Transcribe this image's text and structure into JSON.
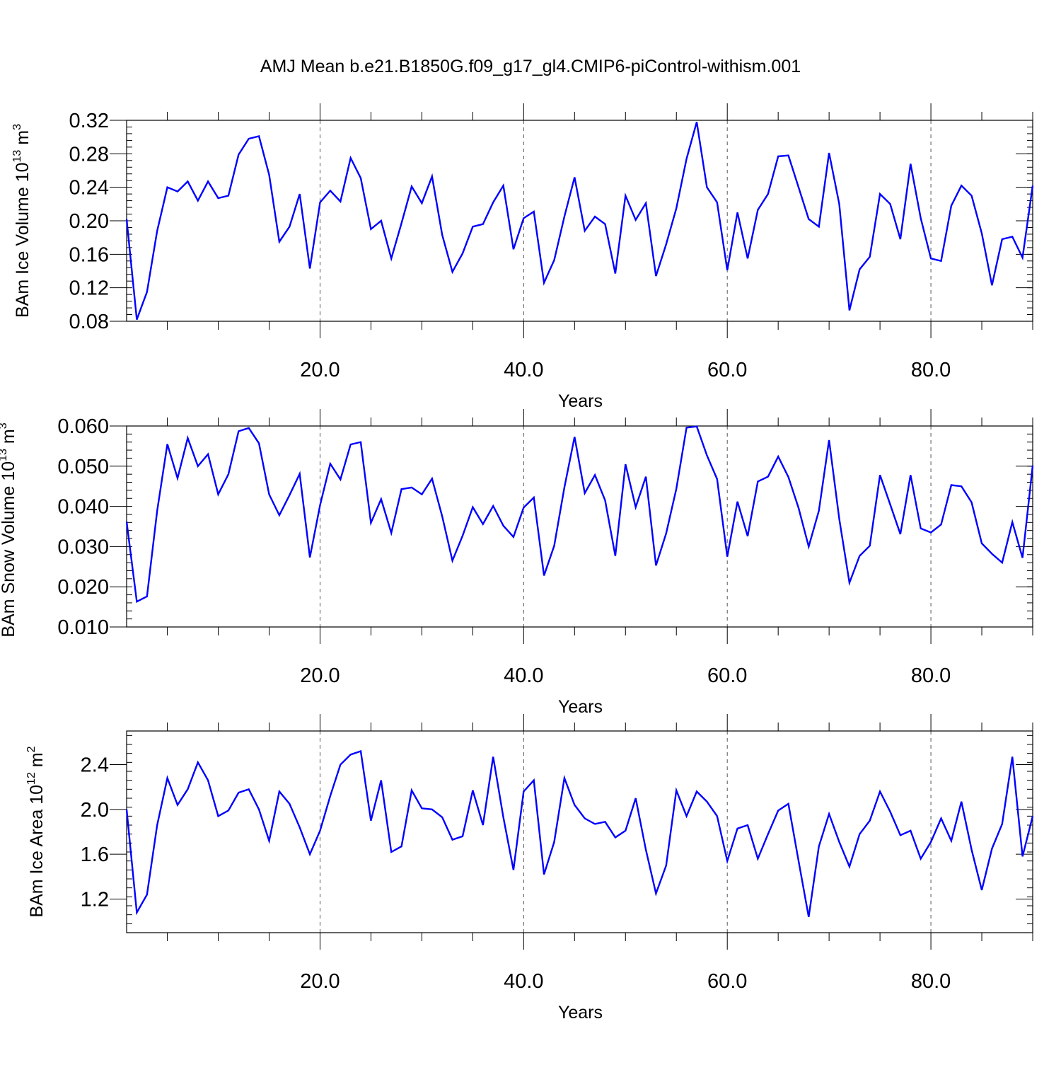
{
  "title": "AMJ Mean b.e21.B1850G.f09_g17_gl4.CMIP6-piControl-withism.001",
  "chart_data": [
    {
      "type": "line",
      "title": "",
      "xlabel": "Years",
      "ylabel": "BAm Ice Volume 10",
      "ylabel_exp": "13",
      "ylabel_unit": "m",
      "ylabel_unit_exp": "3",
      "xlim": [
        1,
        90
      ],
      "ylim": [
        0.08,
        0.32
      ],
      "xticks": [
        20,
        40,
        60,
        80
      ],
      "xtick_labels": [
        "20.0",
        "40.0",
        "60.0",
        "80.0"
      ],
      "yticks": [
        0.08,
        0.12,
        0.16,
        0.2,
        0.24,
        0.28,
        0.32
      ],
      "ytick_labels": [
        "0.08",
        "0.12",
        "0.16",
        "0.20",
        "0.24",
        "0.28",
        "0.32"
      ],
      "ygrid": false,
      "xgrid": "dashed",
      "series": [
        {
          "color": "#0000ff",
          "x": [
            1,
            2,
            3,
            4,
            5,
            6,
            7,
            8,
            9,
            10,
            11,
            12,
            13,
            14,
            15,
            16,
            17,
            18,
            19,
            20,
            21,
            22,
            23,
            24,
            25,
            26,
            27,
            28,
            29,
            30,
            31,
            32,
            33,
            34,
            35,
            36,
            37,
            38,
            39,
            40,
            41,
            42,
            43,
            44,
            45,
            46,
            47,
            48,
            49,
            50,
            51,
            52,
            53,
            54,
            55,
            56,
            57,
            58,
            59,
            60,
            61,
            62,
            63,
            64,
            65,
            66,
            67,
            68,
            69,
            70,
            71,
            72,
            73,
            74,
            75,
            76,
            77,
            78,
            79,
            80,
            81,
            82,
            83,
            84,
            85,
            86,
            87,
            88,
            89,
            90
          ],
          "values": [
            0.202,
            0.082,
            0.115,
            0.188,
            0.24,
            0.235,
            0.247,
            0.224,
            0.247,
            0.227,
            0.23,
            0.279,
            0.298,
            0.301,
            0.255,
            0.175,
            0.193,
            0.232,
            0.143,
            0.222,
            0.236,
            0.223,
            0.275,
            0.251,
            0.19,
            0.2,
            0.155,
            0.197,
            0.241,
            0.221,
            0.253,
            0.183,
            0.139,
            0.161,
            0.193,
            0.196,
            0.222,
            0.242,
            0.166,
            0.203,
            0.211,
            0.126,
            0.153,
            0.205,
            0.252,
            0.188,
            0.205,
            0.196,
            0.137,
            0.23,
            0.201,
            0.221,
            0.134,
            0.172,
            0.215,
            0.274,
            0.318,
            0.24,
            0.222,
            0.141,
            0.21,
            0.155,
            0.213,
            0.232,
            0.277,
            0.278,
            0.24,
            0.202,
            0.193,
            0.281,
            0.22,
            0.093,
            0.142,
            0.157,
            0.232,
            0.22,
            0.178,
            0.268,
            0.203,
            0.155,
            0.152,
            0.218,
            0.242,
            0.23,
            0.185,
            0.123,
            0.178,
            0.181,
            0.156,
            0.242
          ]
        }
      ]
    },
    {
      "type": "line",
      "title": "",
      "xlabel": "Years",
      "ylabel": "BAm Snow Volume 10",
      "ylabel_exp": "13",
      "ylabel_unit": "m",
      "ylabel_unit_exp": "3",
      "xlim": [
        1,
        90
      ],
      "ylim": [
        0.01,
        0.06
      ],
      "xticks": [
        20,
        40,
        60,
        80
      ],
      "xtick_labels": [
        "20.0",
        "40.0",
        "60.0",
        "80.0"
      ],
      "yticks": [
        0.01,
        0.02,
        0.03,
        0.04,
        0.05,
        0.06
      ],
      "ytick_labels": [
        "0.010",
        "0.020",
        "0.030",
        "0.040",
        "0.050",
        "0.060"
      ],
      "ygrid": false,
      "xgrid": "dashed",
      "series": [
        {
          "color": "#0000ff",
          "x": [
            1,
            2,
            3,
            4,
            5,
            6,
            7,
            8,
            9,
            10,
            11,
            12,
            13,
            14,
            15,
            16,
            17,
            18,
            19,
            20,
            21,
            22,
            23,
            24,
            25,
            26,
            27,
            28,
            29,
            30,
            31,
            32,
            33,
            34,
            35,
            36,
            37,
            38,
            39,
            40,
            41,
            42,
            43,
            44,
            45,
            46,
            47,
            48,
            49,
            50,
            51,
            52,
            53,
            54,
            55,
            56,
            57,
            58,
            59,
            60,
            61,
            62,
            63,
            64,
            65,
            66,
            67,
            68,
            69,
            70,
            71,
            72,
            73,
            74,
            75,
            76,
            77,
            78,
            79,
            80,
            81,
            82,
            83,
            84,
            85,
            86,
            87,
            88,
            89,
            90
          ],
          "values": [
            0.0362,
            0.0163,
            0.0176,
            0.0389,
            0.0555,
            0.047,
            0.057,
            0.05,
            0.053,
            0.043,
            0.048,
            0.0587,
            0.0595,
            0.0557,
            0.043,
            0.0378,
            0.0428,
            0.0481,
            0.0273,
            0.0403,
            0.0506,
            0.0467,
            0.0554,
            0.056,
            0.0359,
            0.0418,
            0.0334,
            0.0443,
            0.0447,
            0.043,
            0.0469,
            0.0375,
            0.0265,
            0.0327,
            0.0398,
            0.0356,
            0.0401,
            0.0352,
            0.0324,
            0.0397,
            0.0422,
            0.0228,
            0.0302,
            0.0447,
            0.0573,
            0.0433,
            0.0478,
            0.0415,
            0.0277,
            0.0505,
            0.0398,
            0.0474,
            0.0253,
            0.0333,
            0.0444,
            0.0596,
            0.0599,
            0.0527,
            0.0468,
            0.0275,
            0.0412,
            0.0326,
            0.0462,
            0.0474,
            0.0524,
            0.0473,
            0.0396,
            0.03,
            0.0389,
            0.0565,
            0.0369,
            0.021,
            0.0277,
            0.0302,
            0.0478,
            0.0405,
            0.0331,
            0.0478,
            0.0345,
            0.0335,
            0.0355,
            0.0453,
            0.045,
            0.041,
            0.0308,
            0.0282,
            0.026,
            0.0361,
            0.0272,
            0.0502
          ]
        }
      ]
    },
    {
      "type": "line",
      "title": "",
      "xlabel": "Years",
      "ylabel": "BAm Ice Area 10",
      "ylabel_exp": "12",
      "ylabel_unit": "m",
      "ylabel_unit_exp": "2",
      "xlim": [
        1,
        90
      ],
      "ylim": [
        0.9,
        2.7
      ],
      "xticks": [
        20,
        40,
        60,
        80
      ],
      "xtick_labels": [
        "20.0",
        "40.0",
        "60.0",
        "80.0"
      ],
      "yticks": [
        1.2,
        1.6,
        2.0,
        2.4
      ],
      "ytick_labels": [
        "1.2",
        "1.6",
        "2.0",
        "2.4"
      ],
      "ygrid": false,
      "xgrid": "dashed",
      "series": [
        {
          "color": "#0000ff",
          "x": [
            1,
            2,
            3,
            4,
            5,
            6,
            7,
            8,
            9,
            10,
            11,
            12,
            13,
            14,
            15,
            16,
            17,
            18,
            19,
            20,
            21,
            22,
            23,
            24,
            25,
            26,
            27,
            28,
            29,
            30,
            31,
            32,
            33,
            34,
            35,
            36,
            37,
            38,
            39,
            40,
            41,
            42,
            43,
            44,
            45,
            46,
            47,
            48,
            49,
            50,
            51,
            52,
            53,
            54,
            55,
            56,
            57,
            58,
            59,
            60,
            61,
            62,
            63,
            64,
            65,
            66,
            67,
            68,
            69,
            70,
            71,
            72,
            73,
            74,
            75,
            76,
            77,
            78,
            79,
            80,
            81,
            82,
            83,
            84,
            85,
            86,
            87,
            88,
            89,
            90
          ],
          "values": [
            2.0,
            1.08,
            1.24,
            1.86,
            2.28,
            2.04,
            2.18,
            2.42,
            2.26,
            1.94,
            1.99,
            2.15,
            2.18,
            2.0,
            1.72,
            2.16,
            2.05,
            1.84,
            1.6,
            1.81,
            2.12,
            2.4,
            2.49,
            2.52,
            1.9,
            2.26,
            1.62,
            1.67,
            2.17,
            2.01,
            2.0,
            1.93,
            1.73,
            1.76,
            2.17,
            1.86,
            2.47,
            1.93,
            1.46,
            2.16,
            2.26,
            1.42,
            1.71,
            2.28,
            2.04,
            1.92,
            1.87,
            1.89,
            1.75,
            1.81,
            2.1,
            1.64,
            1.25,
            1.5,
            2.17,
            1.94,
            2.16,
            2.07,
            1.94,
            1.54,
            1.83,
            1.86,
            1.56,
            1.78,
            1.99,
            2.05,
            1.54,
            1.04,
            1.67,
            1.96,
            1.71,
            1.49,
            1.78,
            1.9,
            2.16,
            1.98,
            1.77,
            1.81,
            1.56,
            1.71,
            1.92,
            1.72,
            2.07,
            1.64,
            1.28,
            1.65,
            1.87,
            2.47,
            1.58,
            1.94
          ]
        }
      ]
    }
  ]
}
